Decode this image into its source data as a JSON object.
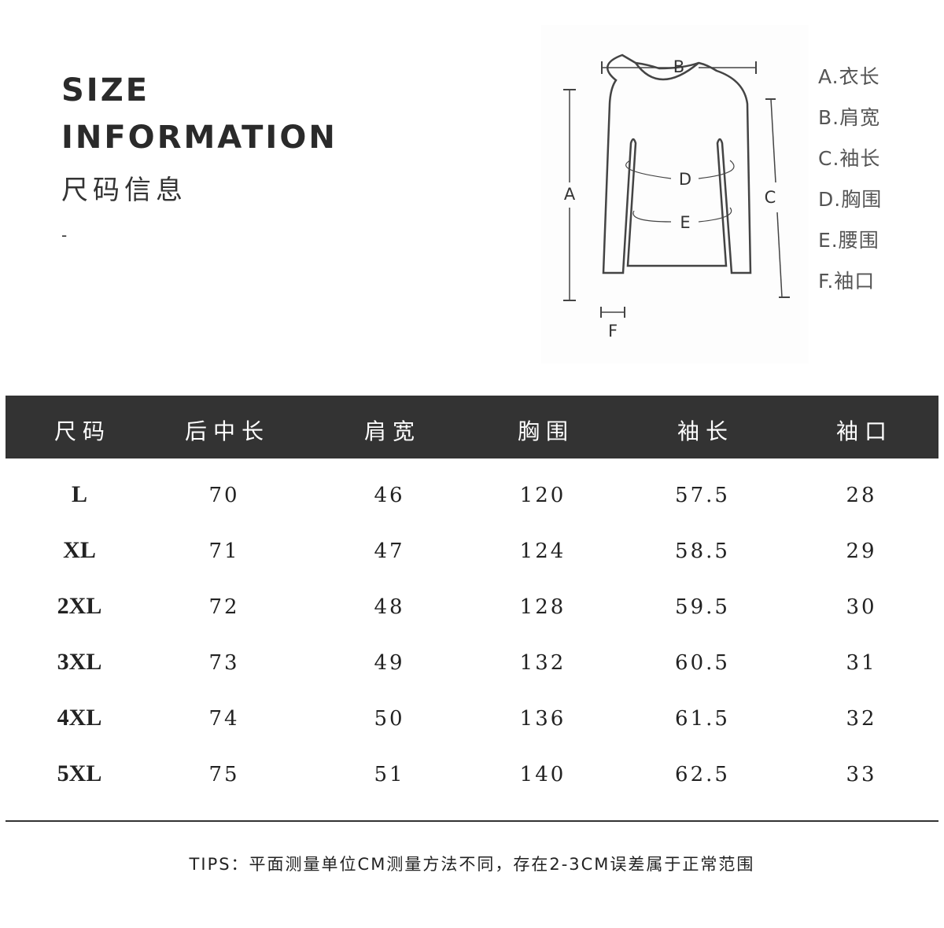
{
  "header": {
    "title_line1": "SIZE",
    "title_line2": "INFORMATION",
    "title_cn": "尺码信息",
    "dash": "-"
  },
  "diagram": {
    "labels": {
      "A": "A",
      "B": "B",
      "C": "C",
      "D": "D",
      "E": "E",
      "F": "F"
    },
    "legend": [
      "A.衣长",
      "B.肩宽",
      "C.袖长",
      "D.胸围",
      "E.腰围",
      "F.袖口"
    ]
  },
  "table": {
    "headers": [
      "尺码",
      "后中长",
      "肩宽",
      "胸围",
      "袖长",
      "袖口"
    ],
    "rows": [
      [
        "L",
        "70",
        "46",
        "120",
        "57.5",
        "28"
      ],
      [
        "XL",
        "71",
        "47",
        "124",
        "58.5",
        "29"
      ],
      [
        "2XL",
        "72",
        "48",
        "128",
        "59.5",
        "30"
      ],
      [
        "3XL",
        "73",
        "49",
        "132",
        "60.5",
        "31"
      ],
      [
        "4XL",
        "74",
        "50",
        "136",
        "61.5",
        "32"
      ],
      [
        "5XL",
        "75",
        "51",
        "140",
        "62.5",
        "33"
      ]
    ]
  },
  "tips": "TIPS：平面测量单位CM测量方法不同，存在2-3CM误差属于正常范围",
  "colors": {
    "header_bg": "#333333",
    "header_text": "#ffffff",
    "text": "#222222"
  }
}
